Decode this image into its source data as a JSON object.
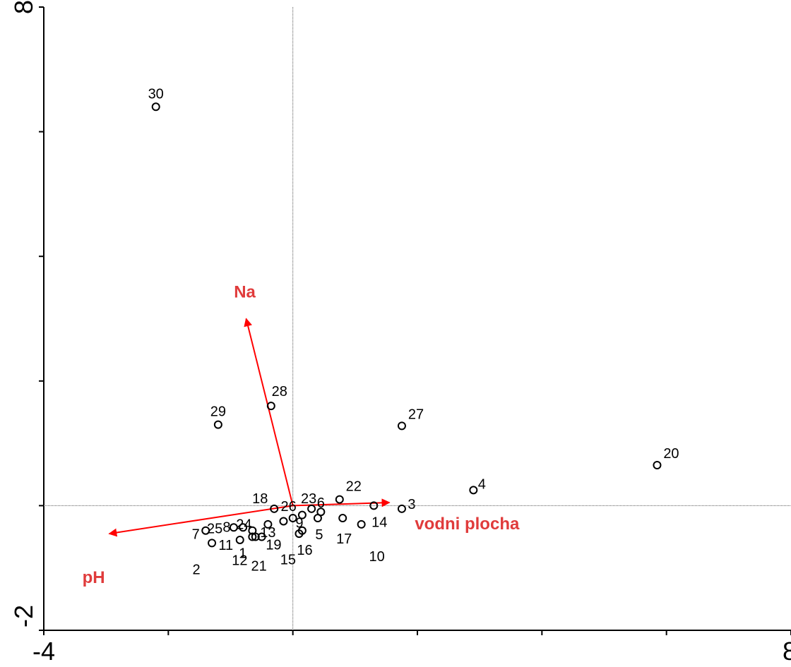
{
  "chart_data": {
    "type": "scatter",
    "title": "",
    "xlabel": "",
    "ylabel": "",
    "xlim": [
      -4,
      8
    ],
    "ylim": [
      -2,
      8
    ],
    "x_tick_labels": [
      "-4",
      "8"
    ],
    "y_tick_labels": [
      "8",
      "-2"
    ],
    "x_ticks": [
      -4,
      -2,
      0,
      2,
      4,
      6,
      8
    ],
    "y_ticks": [
      -2,
      0,
      2,
      4,
      6,
      8
    ],
    "reference_lines": {
      "x": 0,
      "y": 0,
      "style": "dotted"
    },
    "points": [
      {
        "label": "1",
        "x": -0.6,
        "y": -0.5
      },
      {
        "label": "2",
        "x": -1.3,
        "y": -0.6
      },
      {
        "label": "3",
        "x": 1.75,
        "y": -0.05
      },
      {
        "label": "4",
        "x": 2.9,
        "y": 0.25
      },
      {
        "label": "5",
        "x": 0.4,
        "y": -0.2
      },
      {
        "label": "6",
        "x": 0.45,
        "y": -0.1
      },
      {
        "label": "7",
        "x": -1.4,
        "y": -0.4
      },
      {
        "label": "8",
        "x": -0.95,
        "y": -0.35
      },
      {
        "label": "9",
        "x": 0.15,
        "y": -0.15
      },
      {
        "label": "10",
        "x": 1.1,
        "y": -0.3
      },
      {
        "label": "11",
        "x": -0.85,
        "y": -0.55
      },
      {
        "label": "12",
        "x": -0.65,
        "y": -0.5
      },
      {
        "label": "13",
        "x": -0.4,
        "y": -0.3
      },
      {
        "label": "14",
        "x": 1.3,
        "y": 0.0
      },
      {
        "label": "15",
        "x": 0.15,
        "y": -0.4
      },
      {
        "label": "16",
        "x": 0.1,
        "y": -0.45
      },
      {
        "label": "17",
        "x": 0.8,
        "y": -0.2
      },
      {
        "label": "18",
        "x": -0.3,
        "y": -0.05
      },
      {
        "label": "19",
        "x": -0.15,
        "y": -0.25
      },
      {
        "label": "20",
        "x": 5.85,
        "y": 0.65
      },
      {
        "label": "21",
        "x": -0.5,
        "y": -0.5
      },
      {
        "label": "22",
        "x": 0.75,
        "y": 0.1
      },
      {
        "label": "23",
        "x": 0.3,
        "y": -0.05
      },
      {
        "label": "24",
        "x": -0.65,
        "y": -0.4
      },
      {
        "label": "25",
        "x": -0.8,
        "y": -0.35
      },
      {
        "label": "26",
        "x": 0.0,
        "y": -0.2
      },
      {
        "label": "27",
        "x": 1.75,
        "y": 1.28
      },
      {
        "label": "28",
        "x": -0.35,
        "y": 1.6
      },
      {
        "label": "29",
        "x": -1.2,
        "y": 1.3
      },
      {
        "label": "30",
        "x": -2.2,
        "y": 6.4
      }
    ],
    "vectors": [
      {
        "label": "Na",
        "x": -0.75,
        "y": 3.0,
        "color": "#ff0000"
      },
      {
        "label": "pH",
        "x": -2.95,
        "y": -0.45,
        "color": "#ff0000"
      },
      {
        "label": "vodni plocha",
        "x": 1.55,
        "y": 0.05,
        "color": "#ff0000"
      }
    ],
    "vector_label_color": "#e03b3b",
    "marker": "open-circle"
  }
}
